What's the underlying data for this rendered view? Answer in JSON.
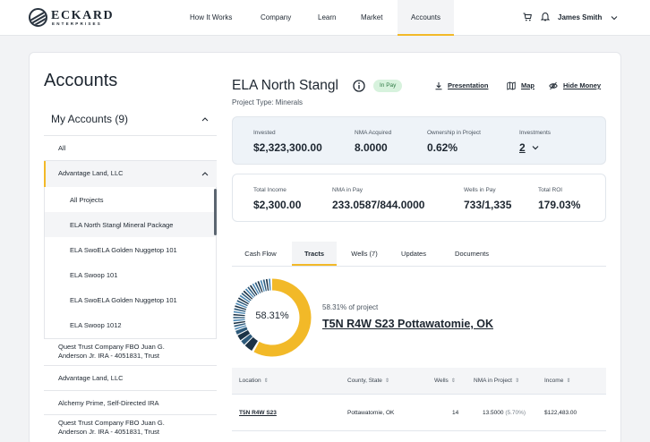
{
  "brand": {
    "name": "ECKARD",
    "sub": "ENTERPRISES"
  },
  "nav": {
    "items": [
      "How It Works",
      "Company",
      "Learn",
      "Market",
      "Accounts"
    ],
    "active": "Accounts"
  },
  "user": {
    "name": "James Smith"
  },
  "sidebar": {
    "title": "Accounts",
    "my_accounts": "My Accounts (9)",
    "all": "All",
    "selected_account": "Advantage Land, LLC",
    "projects": [
      "All Projects",
      "ELA North Stangl Mineral Package",
      "ELA SwoELA Golden Nuggetop 101",
      "ELA Swoop 101",
      "ELA SwoELA Golden Nuggetop 101",
      "ELA Swoop 1012"
    ],
    "accounts": [
      {
        "line1": "Quest Trust Company FBO Juan G.",
        "line2": "Anderson Jr. IRA - 4051831, Trust"
      },
      {
        "line1": "Advantage Land, LLC",
        "line2": ""
      },
      {
        "line1": "Alchemy Prime, Self-Directed IRA",
        "line2": ""
      },
      {
        "line1": "Quest Trust Company FBO Juan G.",
        "line2": "Anderson Jr. IRA - 4051831, Trust"
      }
    ]
  },
  "deal": {
    "title": "ELA North Stangl",
    "status": "In Pay",
    "project_type": "Project Type: Minerals",
    "actions": {
      "presentation": "Presentation",
      "map": "Map",
      "hide_money": "Hide Money"
    }
  },
  "stats": {
    "invested": {
      "label": "Invested",
      "value": "$2,323,300.00"
    },
    "nma_acquired": {
      "label": "NMA Acquired",
      "value": "8.0000"
    },
    "ownership": {
      "label": "Ownership in Project",
      "value": "0.62%"
    },
    "investments": {
      "label": "Investments",
      "value": "2"
    },
    "total_income": {
      "label": "Total Income",
      "value": "$2,300.00"
    },
    "nma_in_pay": {
      "label": "NMA in Pay",
      "value": "233.0587/844.0000"
    },
    "wells_in_pay": {
      "label": "Wells in Pay",
      "value": "733/1,335"
    },
    "total_roi": {
      "label": "Total ROI",
      "value": "179.03%"
    }
  },
  "tabs": [
    "Cash Flow",
    "Tracts",
    "Wells (7)",
    "Updates",
    "Documents"
  ],
  "active_tab": "Tracts",
  "tract": {
    "percent": "58.31%",
    "percent_value": 58.31,
    "of_project": "58.31% of project",
    "name": "T5N R4W S23 Pottawatomie, OK",
    "colors": {
      "primary": "#f2b928",
      "dark": "#1c3346",
      "mid": "#2d5a7b",
      "light": "#4a87b3"
    }
  },
  "table": {
    "headers": [
      "Location",
      "County, State",
      "Wells",
      "NMA in Project",
      "Income"
    ],
    "rows": [
      {
        "location": "T5N R4W S23",
        "county": "Pottawatomie, OK",
        "wells": "14",
        "nma": "13.5000",
        "nma_pct": "(5.70%)",
        "income": "$122,483.00"
      }
    ]
  }
}
